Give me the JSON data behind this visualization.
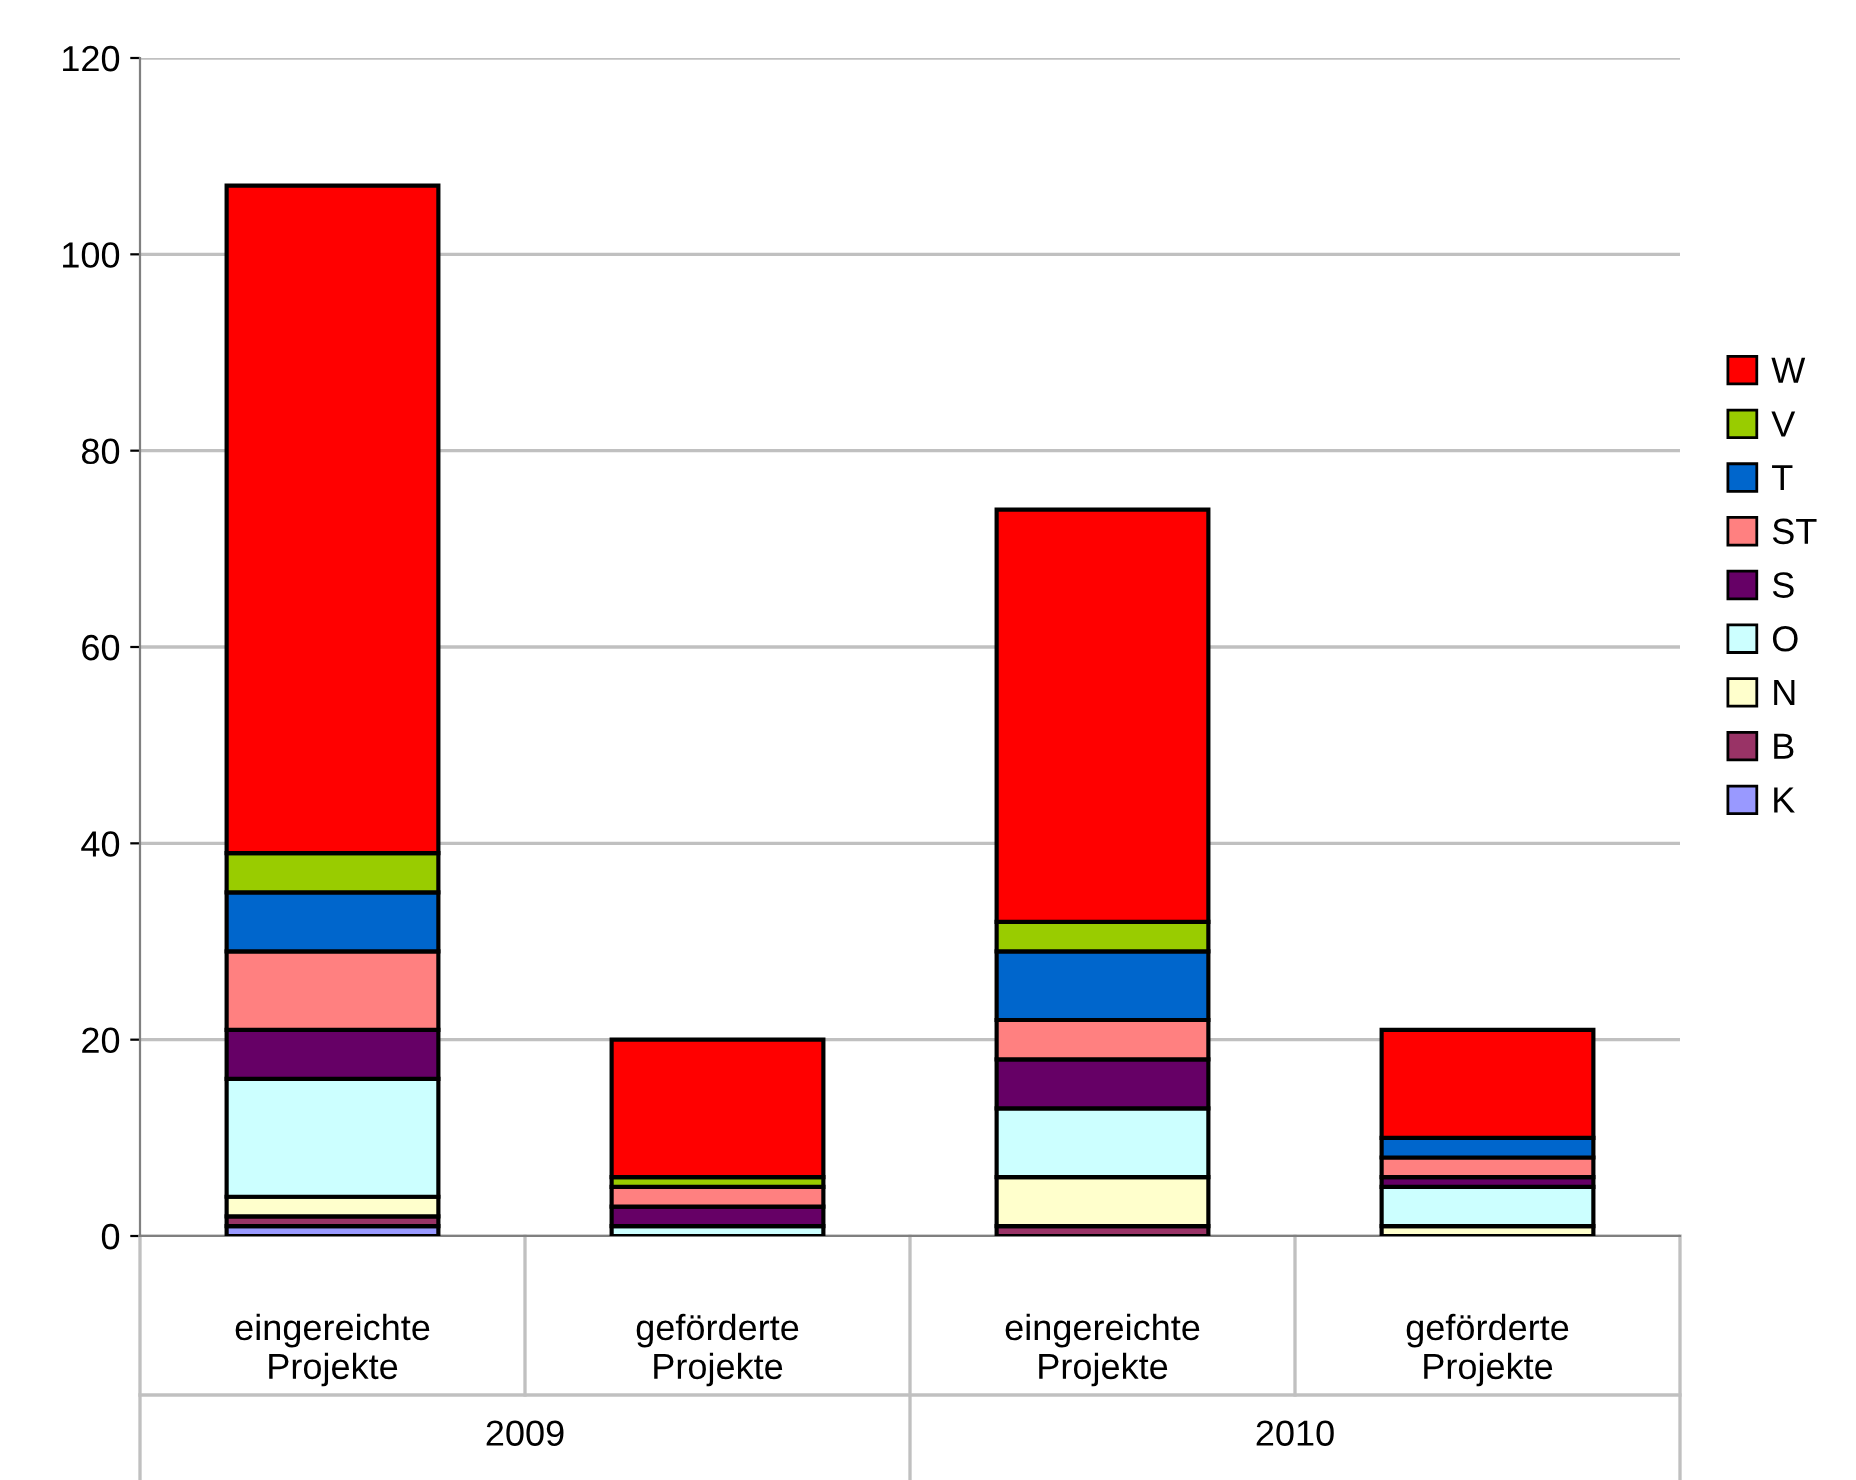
{
  "chart_data": {
    "type": "bar",
    "stacked": true,
    "categories": [
      "eingereichte\nProjekte",
      "geförderte\nProjekte",
      "eingereichte\nProjekte",
      "geförderte\nProjekte"
    ],
    "annotations": [
      "2009",
      "2010"
    ],
    "series": [
      {
        "name": "K",
        "color": "#9999ff",
        "values": [
          1,
          0,
          0,
          0
        ]
      },
      {
        "name": "B",
        "color": "#993366",
        "values": [
          1,
          0,
          1,
          0
        ]
      },
      {
        "name": "N",
        "color": "#ffffcc",
        "values": [
          2,
          0,
          5,
          1
        ]
      },
      {
        "name": "O",
        "color": "#ccffff",
        "values": [
          12,
          1,
          7,
          4
        ]
      },
      {
        "name": "S",
        "color": "#660066",
        "values": [
          5,
          2,
          5,
          1
        ]
      },
      {
        "name": "ST",
        "color": "#ff8080",
        "values": [
          8,
          2,
          4,
          2
        ]
      },
      {
        "name": "T",
        "color": "#0066cc",
        "values": [
          6,
          0,
          7,
          2
        ]
      },
      {
        "name": "V",
        "color": "#99cc00",
        "values": [
          4,
          1,
          3,
          0
        ]
      },
      {
        "name": "W",
        "color": "#ff0000",
        "values": [
          68,
          14,
          42,
          11
        ]
      }
    ],
    "ylim": [
      0,
      120
    ],
    "yticks": [
      0,
      20,
      40,
      60,
      80,
      100,
      120
    ],
    "grid": "y",
    "legend": "right"
  }
}
